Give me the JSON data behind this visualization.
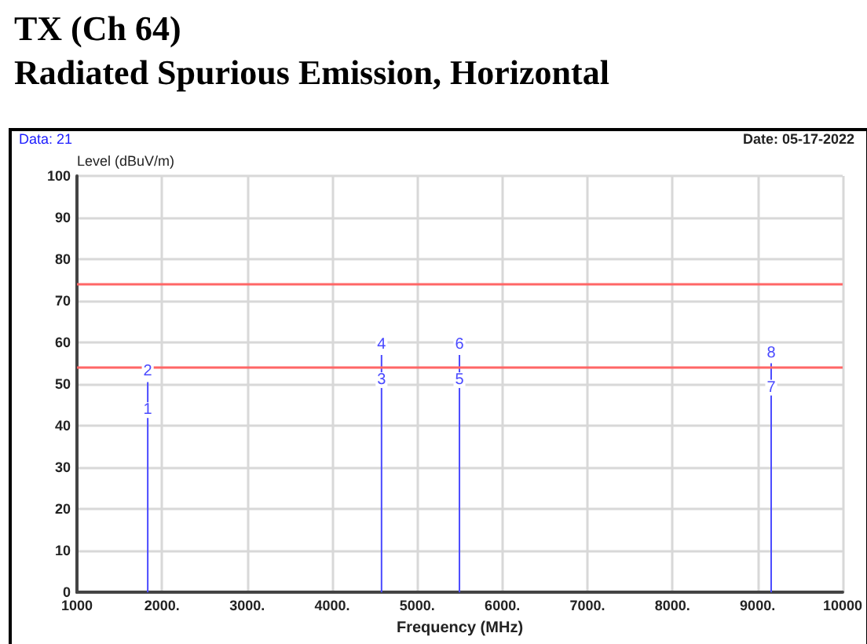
{
  "chart_data": {
    "type": "bar",
    "title": "TX (Ch 64)",
    "subtitle": "Radiated Spurious Emission, Horizontal",
    "xlabel": "Frequency (MHz)",
    "ylabel": "Level (dBuV/m)",
    "annotations": [
      "Data: 21",
      "Date: 05-17-2022",
      {
        "text": "2",
        "x": 1832,
        "y": 50.5
      },
      {
        "text": "4",
        "x": 4580,
        "y": 57
      },
      {
        "text": "6",
        "x": 5496,
        "y": 57
      },
      {
        "text": "8",
        "x": 9160,
        "y": 55
      },
      {
        "text": "1",
        "x": 1832,
        "y": 41.3
      },
      {
        "text": "3",
        "x": 4580,
        "y": 48.5
      },
      {
        "text": "5",
        "x": 5496,
        "y": 48.5
      },
      {
        "text": "7",
        "x": 9160,
        "y": 46.7
      }
    ],
    "x": [
      1832,
      4580,
      5496,
      9160
    ],
    "series": [
      {
        "color": "#4a4aff",
        "values": [
          50.5,
          57,
          57,
          55
        ]
      }
    ],
    "xlim": [
      1000,
      10000
    ],
    "xticks": [
      1000,
      {
        "value": 2000,
        "label": "2000."
      },
      {
        "value": 3000,
        "label": "3000."
      },
      {
        "value": 4000,
        "label": "4000."
      },
      {
        "value": 5000,
        "label": "5000."
      },
      {
        "value": 6000,
        "label": "6000."
      },
      {
        "value": 7000,
        "label": "7000."
      },
      {
        "value": 8000,
        "label": "8000."
      },
      {
        "value": 9000,
        "label": "9000."
      },
      10000
    ],
    "ylim": [
      0,
      100
    ],
    "yticks": [
      0,
      10,
      20,
      30,
      40,
      50,
      60,
      70,
      80,
      90,
      100
    ],
    "ref_lines": [
      {
        "axis": "y",
        "value": 74,
        "color": "#ff6666"
      },
      {
        "axis": "y",
        "value": 54,
        "color": "#ff6666"
      }
    ],
    "grid": true
  }
}
